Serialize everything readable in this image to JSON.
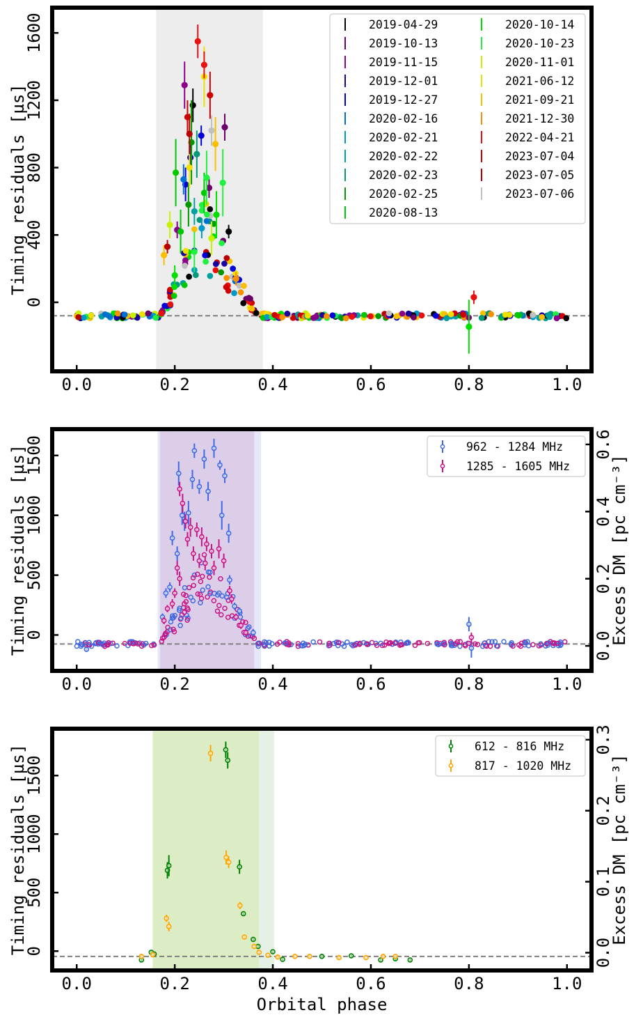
{
  "figure": {
    "shared_xlabel": "Orbital phase"
  },
  "chart_data": [
    {
      "type": "scatter",
      "panel": "top",
      "title": "",
      "xlabel": "",
      "ylabel": "Timing residuals [µs]",
      "xlim": [
        -0.05,
        1.05
      ],
      "ylim": [
        -410,
        1750
      ],
      "xticks": [
        0.0,
        0.2,
        0.4,
        0.6,
        0.8,
        1.0
      ],
      "xtick_labels": [
        "0.0",
        "0.2",
        "0.4",
        "0.6",
        "0.8",
        "1.0"
      ],
      "yticks": [
        0,
        400,
        800,
        1200,
        1600
      ],
      "ytick_labels": [
        "0",
        "400",
        "800",
        "1200",
        "1600"
      ],
      "baseline": -80,
      "shaded_regions": [
        {
          "x0": 0.162,
          "x1": 0.38,
          "color": "#d3d3d3",
          "opacity": 0.4
        }
      ],
      "legend": {
        "placement": "upper-right",
        "columns": 2,
        "entries": [
          {
            "label": "2019-04-29",
            "color": "#000000"
          },
          {
            "label": "2019-10-13",
            "color": "#6b006b"
          },
          {
            "label": "2019-11-15",
            "color": "#8b008b"
          },
          {
            "label": "2019-12-01",
            "color": "#1a00a0"
          },
          {
            "label": "2019-12-27",
            "color": "#0000d8"
          },
          {
            "label": "2020-02-16",
            "color": "#0070d0"
          },
          {
            "label": "2020-02-21",
            "color": "#0098c8"
          },
          {
            "label": "2020-02-22",
            "color": "#00a0a0"
          },
          {
            "label": "2020-02-23",
            "color": "#009a78"
          },
          {
            "label": "2020-02-25",
            "color": "#009a00"
          },
          {
            "label": "2020-08-13",
            "color": "#00c800"
          },
          {
            "label": "2020-10-14",
            "color": "#00e000"
          },
          {
            "label": "2020-10-23",
            "color": "#20f040"
          },
          {
            "label": "2020-11-01",
            "color": "#c8f000"
          },
          {
            "label": "2021-06-12",
            "color": "#f0e000"
          },
          {
            "label": "2021-09-21",
            "color": "#f8c000"
          },
          {
            "label": "2021-12-30",
            "color": "#f89000"
          },
          {
            "label": "2022-04-21",
            "color": "#e81010"
          },
          {
            "label": "2023-07-04",
            "color": "#d00000"
          },
          {
            "label": "2023-07-05",
            "color": "#b80000"
          },
          {
            "label": "2023-07-06",
            "color": "#c0c0c0"
          }
        ]
      },
      "series": [
        {
          "name": "2019-04-29",
          "points": [
            [
              0.237,
              1170,
              100
            ],
            [
              0.31,
              420,
              40
            ]
          ]
        },
        {
          "name": "2019-10-13",
          "points": [
            [
              0.302,
              1040,
              80
            ],
            [
              0.27,
              680,
              60
            ]
          ]
        },
        {
          "name": "2019-11-15",
          "points": [
            [
              0.22,
              1290,
              140
            ],
            [
              0.205,
              430,
              50
            ]
          ]
        },
        {
          "name": "2019-12-01",
          "points": [
            [
              0.232,
              860,
              80
            ]
          ]
        },
        {
          "name": "2019-12-27",
          "points": [
            [
              0.254,
              990,
              60
            ],
            [
              0.222,
              700,
              100
            ]
          ]
        },
        {
          "name": "2020-02-16",
          "points": [
            [
              0.218,
              730,
              90
            ]
          ]
        },
        {
          "name": "2020-02-21",
          "points": [
            [
              0.255,
              440,
              60
            ]
          ]
        },
        {
          "name": "2020-02-22",
          "points": [
            [
              0.24,
              540,
              80
            ]
          ]
        },
        {
          "name": "2020-02-23",
          "points": [
            [
              0.245,
              880,
              140
            ]
          ]
        },
        {
          "name": "2020-02-25",
          "points": [
            [
              0.234,
              950,
              250
            ],
            [
              0.228,
              580,
              130
            ]
          ]
        },
        {
          "name": "2020-08-13",
          "points": [
            [
              0.202,
              770,
              200
            ],
            [
              0.212,
              420,
              130
            ],
            [
              0.26,
              650,
              120
            ]
          ]
        },
        {
          "name": "2020-10-14",
          "points": [
            [
              0.8,
              -145,
              160
            ],
            [
              0.285,
              520,
              140
            ],
            [
              0.2,
              160,
              60
            ]
          ]
        },
        {
          "name": "2020-10-23",
          "points": [
            [
              0.24,
              300,
              120
            ],
            [
              0.265,
              740,
              160
            ],
            [
              0.298,
              710,
              200
            ]
          ]
        },
        {
          "name": "2020-11-01",
          "points": [
            [
              0.19,
              460,
              80
            ],
            [
              0.275,
              380,
              100
            ]
          ]
        },
        {
          "name": "2021-06-12",
          "points": [
            [
              0.23,
              800,
              120
            ],
            [
              0.26,
              1340,
              180
            ]
          ]
        },
        {
          "name": "2021-09-21",
          "points": [
            [
              0.283,
              940,
              160
            ],
            [
              0.178,
              280,
              60
            ]
          ]
        },
        {
          "name": "2021-12-30",
          "points": [
            [
              0.325,
              140,
              40
            ]
          ]
        },
        {
          "name": "2022-04-21",
          "points": [
            [
              0.247,
              1550,
              100
            ],
            [
              0.26,
              1410,
              80
            ],
            [
              0.81,
              30,
              40
            ]
          ]
        },
        {
          "name": "2023-07-04",
          "points": [
            [
              0.272,
              1230,
              140
            ],
            [
              0.226,
              1100,
              100
            ]
          ]
        },
        {
          "name": "2023-07-05",
          "points": [
            [
              0.23,
              1000,
              120
            ],
            [
              0.185,
              330,
              40
            ]
          ]
        },
        {
          "name": "2023-07-06",
          "points": [
            [
              0.275,
              1020,
              90
            ]
          ]
        }
      ]
    },
    {
      "type": "scatter",
      "panel": "middle",
      "title": "",
      "xlabel": "",
      "ylabel": "Timing residuals [µs]",
      "y2label": "Excess DM [pc cm⁻³]",
      "xlim": [
        -0.05,
        1.05
      ],
      "ylim": [
        -300,
        1720
      ],
      "y2lim": [
        -0.0745,
        0.6455
      ],
      "xticks": [
        0.0,
        0.2,
        0.4,
        0.6,
        0.8,
        1.0
      ],
      "xtick_labels": [
        "0.0",
        "0.2",
        "0.4",
        "0.6",
        "0.8",
        "1.0"
      ],
      "yticks": [
        0,
        500,
        1000,
        1500
      ],
      "ytick_labels": [
        "0",
        "500",
        "1000",
        "1500"
      ],
      "y2ticks": [
        0.0,
        0.2,
        0.4,
        0.6
      ],
      "y2tick_labels": [
        "0.0",
        "0.2",
        "0.4",
        "0.6"
      ],
      "baseline": -75,
      "shaded_regions": [
        {
          "x0": 0.165,
          "x1": 0.376,
          "color": "#c8ccf0",
          "opacity": 0.45
        },
        {
          "x0": 0.17,
          "x1": 0.362,
          "color": "#d4b8dc",
          "opacity": 0.55
        }
      ],
      "legend": {
        "placement": "upper-right",
        "columns": 1,
        "entries": [
          {
            "label": "962 - 1284 MHz",
            "color": "#4169e1"
          },
          {
            "label": "1285 - 1605 MHz",
            "color": "#c71585"
          }
        ]
      },
      "series": [
        {
          "name": "962 - 1284 MHz",
          "color": "#4169e1",
          "points": [
            [
              0.24,
              1540,
              60
            ],
            [
              0.26,
              1470,
              80
            ],
            [
              0.28,
              1560,
              80
            ],
            [
              0.292,
              1420,
              40
            ],
            [
              0.302,
              1330,
              60
            ],
            [
              0.208,
              1350,
              100
            ],
            [
              0.236,
              1300,
              80
            ],
            [
              0.25,
              1240,
              60
            ],
            [
              0.268,
              1200,
              80
            ],
            [
              0.215,
              1000,
              80
            ],
            [
              0.22,
              950,
              80
            ],
            [
              0.228,
              1020,
              100
            ],
            [
              0.296,
              1000,
              120
            ],
            [
              0.31,
              850,
              80
            ],
            [
              0.195,
              810,
              60
            ],
            [
              0.205,
              680,
              60
            ],
            [
              0.19,
              400,
              40
            ],
            [
              0.182,
              350,
              40
            ],
            [
              0.175,
              150,
              30
            ],
            [
              0.312,
              460,
              40
            ],
            [
              0.322,
              240,
              30
            ],
            [
              0.332,
              200,
              30
            ],
            [
              0.8,
              90,
              60
            ],
            [
              0.805,
              -110,
              80
            ],
            [
              0.02,
              -120,
              20
            ],
            [
              0.36,
              20,
              30
            ]
          ]
        },
        {
          "name": "1285 - 1605 MHz",
          "color": "#c71585",
          "points": [
            [
              0.21,
              1220,
              60
            ],
            [
              0.216,
              1100,
              80
            ],
            [
              0.222,
              950,
              60
            ],
            [
              0.232,
              900,
              80
            ],
            [
              0.245,
              880,
              60
            ],
            [
              0.255,
              820,
              80
            ],
            [
              0.265,
              760,
              60
            ],
            [
              0.275,
              700,
              60
            ],
            [
              0.29,
              720,
              80
            ],
            [
              0.3,
              620,
              60
            ],
            [
              0.226,
              800,
              60
            ],
            [
              0.238,
              680,
              60
            ],
            [
              0.25,
              620,
              60
            ],
            [
              0.262,
              600,
              60
            ],
            [
              0.205,
              560,
              60
            ],
            [
              0.2,
              350,
              40
            ],
            [
              0.195,
              260,
              40
            ],
            [
              0.185,
              220,
              30
            ],
            [
              0.178,
              120,
              30
            ],
            [
              0.312,
              370,
              40
            ],
            [
              0.316,
              300,
              40
            ],
            [
              0.325,
              150,
              30
            ],
            [
              0.335,
              80,
              30
            ],
            [
              0.345,
              20,
              30
            ],
            [
              0.21,
              470,
              60
            ],
            [
              0.28,
              560,
              60
            ],
            [
              0.8,
              -70,
              20
            ],
            [
              0.805,
              -20,
              40
            ]
          ]
        }
      ]
    },
    {
      "type": "scatter",
      "panel": "bottom",
      "title": "",
      "xlabel": "Orbital phase",
      "ylabel": "Timing residuals [µs]",
      "y2label": "Excess DM [pc cm⁻³]",
      "xlim": [
        -0.05,
        1.05
      ],
      "ylim": [
        -165,
        1900
      ],
      "y2lim": [
        -0.025,
        0.3155
      ],
      "xticks": [
        0.0,
        0.2,
        0.4,
        0.6,
        0.8,
        1.0
      ],
      "xtick_labels": [
        "0.0",
        "0.2",
        "0.4",
        "0.6",
        "0.8",
        "1.0"
      ],
      "yticks": [
        0,
        500,
        1000,
        1500
      ],
      "ytick_labels": [
        "0",
        "500",
        "1000",
        "1500"
      ],
      "y2ticks": [
        0.0,
        0.1,
        0.2,
        0.3
      ],
      "y2tick_labels": [
        "0.0",
        "0.1",
        "0.2",
        "0.3"
      ],
      "baseline": -45,
      "shaded_regions": [
        {
          "x0": 0.155,
          "x1": 0.403,
          "color": "#b8d8b8",
          "opacity": 0.35
        },
        {
          "x0": 0.155,
          "x1": 0.372,
          "color": "#d4e8a8",
          "opacity": 0.55
        }
      ],
      "legend": {
        "placement": "upper-right",
        "columns": 1,
        "entries": [
          {
            "label": "612 - 816 MHz",
            "color": "#008000"
          },
          {
            "label": "817 - 1020 MHz",
            "color": "#ffa500"
          }
        ]
      },
      "series": [
        {
          "name": "612 - 816 MHz",
          "color": "#008000",
          "points": [
            [
              0.132,
              -75,
              15
            ],
            [
              0.152,
              -10,
              15
            ],
            [
              0.158,
              -25,
              15
            ],
            [
              0.185,
              690,
              70
            ],
            [
              0.188,
              730,
              90
            ],
            [
              0.304,
              1720,
              70
            ],
            [
              0.308,
              1630,
              70
            ],
            [
              0.332,
              720,
              60
            ],
            [
              0.34,
              320,
              20
            ],
            [
              0.36,
              100,
              20
            ],
            [
              0.37,
              40,
              20
            ],
            [
              0.4,
              -5,
              15
            ],
            [
              0.42,
              -70,
              15
            ],
            [
              0.5,
              -45,
              15
            ],
            [
              0.56,
              -40,
              15
            ],
            [
              0.62,
              -75,
              15
            ],
            [
              0.65,
              -65,
              15
            ],
            [
              0.68,
              -75,
              15
            ]
          ]
        },
        {
          "name": "817 - 1020 MHz",
          "color": "#ffa500",
          "points": [
            [
              0.132,
              -45,
              15
            ],
            [
              0.155,
              -30,
              15
            ],
            [
              0.183,
              280,
              30
            ],
            [
              0.188,
              210,
              40
            ],
            [
              0.273,
              1690,
              70
            ],
            [
              0.305,
              800,
              60
            ],
            [
              0.31,
              760,
              50
            ],
            [
              0.333,
              390,
              30
            ],
            [
              0.342,
              120,
              20
            ],
            [
              0.362,
              40,
              20
            ],
            [
              0.372,
              -10,
              15
            ],
            [
              0.39,
              -35,
              15
            ],
            [
              0.41,
              -50,
              15
            ],
            [
              0.445,
              -45,
              15
            ],
            [
              0.475,
              -45,
              15
            ],
            [
              0.535,
              -55,
              15
            ],
            [
              0.59,
              -55,
              15
            ],
            [
              0.625,
              -45,
              15
            ],
            [
              0.65,
              -45,
              15
            ]
          ]
        }
      ]
    }
  ]
}
